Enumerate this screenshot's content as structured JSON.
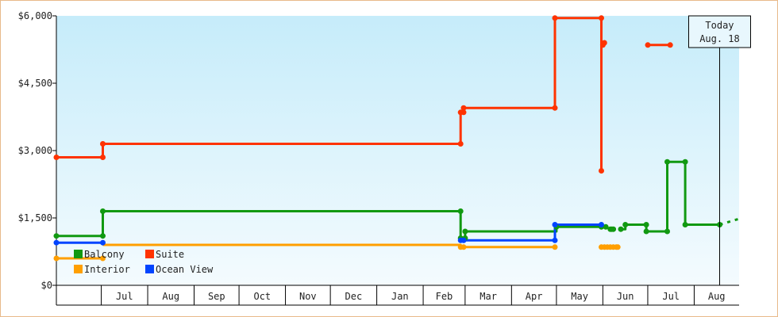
{
  "chart_data": {
    "type": "line",
    "title": "",
    "xlabel": "",
    "ylabel": "",
    "ylim": [
      0,
      6000
    ],
    "y_ticks": [
      "$0",
      "$1,500",
      "$3,000",
      "$4,500",
      "$6,000"
    ],
    "y_tick_values": [
      0,
      1500,
      3000,
      4500,
      6000
    ],
    "x_range": [
      "2012-06-01",
      "2013-08-31"
    ],
    "x_ticks": [
      {
        "label": "Jul",
        "start": "2012-07-01",
        "end": "2012-08-01"
      },
      {
        "label": "Aug",
        "start": "2012-08-01",
        "end": "2012-09-01"
      },
      {
        "label": "Sep",
        "start": "2012-09-01",
        "end": "2012-10-01"
      },
      {
        "label": "Oct",
        "start": "2012-10-01",
        "end": "2012-11-01"
      },
      {
        "label": "Nov",
        "start": "2012-11-01",
        "end": "2012-12-01"
      },
      {
        "label": "Dec",
        "start": "2012-12-01",
        "end": "2013-01-01"
      },
      {
        "label": "Jan",
        "start": "2013-01-01",
        "end": "2013-02-01"
      },
      {
        "label": "Feb",
        "start": "2013-02-01",
        "end": "2013-03-01"
      },
      {
        "label": "Mar",
        "start": "2013-03-01",
        "end": "2013-04-01"
      },
      {
        "label": "Apr",
        "start": "2013-04-01",
        "end": "2013-05-01"
      },
      {
        "label": "May",
        "start": "2013-05-01",
        "end": "2013-06-01"
      },
      {
        "label": "Jun",
        "start": "2013-06-01",
        "end": "2013-07-01"
      },
      {
        "label": "Jul",
        "start": "2013-07-01",
        "end": "2013-08-01"
      },
      {
        "label": "Aug",
        "start": "2013-08-01",
        "end": "2013-08-31"
      }
    ],
    "today": {
      "line1": "Today",
      "line2": "Aug. 18",
      "date": "2013-08-18"
    },
    "grid": false,
    "legend_placement": "bottom-left",
    "series": [
      {
        "name": "Balcony",
        "color": "#119911",
        "segments": [
          [
            [
              "2012-06-01",
              1100
            ],
            [
              "2012-07-02",
              1100
            ],
            [
              "2012-07-02",
              1650
            ],
            [
              "2013-02-26",
              1650
            ],
            [
              "2013-02-26",
              1050
            ],
            [
              "2013-03-01",
              1050
            ],
            [
              "2013-03-01",
              1200
            ],
            [
              "2013-05-01",
              1200
            ],
            [
              "2013-05-01",
              1300
            ],
            [
              "2013-05-31",
              1300
            ]
          ],
          [
            [
              "2013-06-06",
              1250
            ],
            [
              "2013-06-08",
              1250
            ]
          ],
          [
            [
              "2013-06-13",
              1250
            ],
            [
              "2013-06-16",
              1250
            ],
            [
              "2013-06-16",
              1350
            ],
            [
              "2013-06-30",
              1350
            ],
            [
              "2013-06-30",
              1200
            ],
            [
              "2013-07-14",
              1200
            ],
            [
              "2013-07-14",
              2750
            ],
            [
              "2013-07-26",
              2750
            ],
            [
              "2013-07-26",
              1350
            ],
            [
              "2013-08-18",
              1350
            ]
          ]
        ],
        "projection": [
          [
            "2013-08-18",
            1350
          ],
          [
            "2013-08-31",
            1480
          ]
        ],
        "points": [
          [
            "2012-06-01",
            1100
          ],
          [
            "2012-07-02",
            1100
          ],
          [
            "2012-07-02",
            1650
          ],
          [
            "2013-02-26",
            1650
          ],
          [
            "2013-02-26",
            1050
          ],
          [
            "2013-03-01",
            1050
          ],
          [
            "2013-03-01",
            1200
          ],
          [
            "2013-05-01",
            1300
          ],
          [
            "2013-05-31",
            1300
          ],
          [
            "2013-06-03",
            1300
          ],
          [
            "2013-06-06",
            1250
          ],
          [
            "2013-06-07",
            1250
          ],
          [
            "2013-06-08",
            1250
          ],
          [
            "2013-06-13",
            1250
          ],
          [
            "2013-06-16",
            1350
          ],
          [
            "2013-06-30",
            1350
          ],
          [
            "2013-06-30",
            1200
          ],
          [
            "2013-07-14",
            1200
          ],
          [
            "2013-07-14",
            2750
          ],
          [
            "2013-07-26",
            2750
          ],
          [
            "2013-07-26",
            1350
          ],
          [
            "2013-08-18",
            1350
          ]
        ]
      },
      {
        "name": "Suite",
        "color": "#ff3300",
        "segments": [
          [
            [
              "2012-06-01",
              2850
            ],
            [
              "2012-07-02",
              2850
            ],
            [
              "2012-07-02",
              3150
            ],
            [
              "2013-02-26",
              3150
            ],
            [
              "2013-02-26",
              3850
            ],
            [
              "2013-02-28",
              3850
            ],
            [
              "2013-02-28",
              3950
            ],
            [
              "2013-04-30",
              3950
            ],
            [
              "2013-04-30",
              5950
            ],
            [
              "2013-05-31",
              5950
            ],
            [
              "2013-05-31",
              2550
            ],
            [
              "2013-05-31",
              5400
            ],
            [
              "2013-06-02",
              5400
            ]
          ],
          [
            [
              "2013-07-01",
              5350
            ],
            [
              "2013-07-16",
              5350
            ]
          ]
        ],
        "points": [
          [
            "2012-06-01",
            2850
          ],
          [
            "2012-07-02",
            2850
          ],
          [
            "2012-07-02",
            3150
          ],
          [
            "2013-02-26",
            3150
          ],
          [
            "2013-02-26",
            3850
          ],
          [
            "2013-02-28",
            3850
          ],
          [
            "2013-02-28",
            3950
          ],
          [
            "2013-04-30",
            3950
          ],
          [
            "2013-04-30",
            5950
          ],
          [
            "2013-05-31",
            5950
          ],
          [
            "2013-05-31",
            2550
          ],
          [
            "2013-06-01",
            5350
          ],
          [
            "2013-06-02",
            5400
          ],
          [
            "2013-07-01",
            5350
          ],
          [
            "2013-07-16",
            5350
          ]
        ]
      },
      {
        "name": "Interior",
        "color": "#ff9f00",
        "segments": [
          [
            [
              "2012-06-01",
              600
            ],
            [
              "2012-07-02",
              600
            ]
          ],
          [
            [
              "2012-07-02",
              900
            ],
            [
              "2013-02-26",
              900
            ],
            [
              "2013-02-26",
              850
            ],
            [
              "2013-04-30",
              850
            ]
          ]
        ],
        "points": [
          [
            "2012-06-01",
            600
          ],
          [
            "2012-07-02",
            600
          ],
          [
            "2013-02-26",
            850
          ],
          [
            "2013-02-28",
            850
          ],
          [
            "2013-04-30",
            850
          ],
          [
            "2013-05-31",
            850
          ],
          [
            "2013-06-02",
            850
          ],
          [
            "2013-06-04",
            850
          ],
          [
            "2013-06-06",
            850
          ],
          [
            "2013-06-08",
            850
          ],
          [
            "2013-06-10",
            850
          ],
          [
            "2013-06-11",
            850
          ]
        ]
      },
      {
        "name": "Ocean View",
        "color": "#0044ff",
        "segments": [
          [
            [
              "2012-06-01",
              950
            ],
            [
              "2012-07-02",
              950
            ]
          ],
          [
            [
              "2013-02-26",
              1000
            ],
            [
              "2013-04-30",
              1000
            ],
            [
              "2013-04-30",
              1350
            ],
            [
              "2013-05-31",
              1350
            ]
          ]
        ],
        "points": [
          [
            "2012-06-01",
            950
          ],
          [
            "2012-07-02",
            950
          ],
          [
            "2013-02-26",
            1000
          ],
          [
            "2013-02-28",
            1000
          ],
          [
            "2013-04-30",
            1000
          ],
          [
            "2013-04-30",
            1350
          ],
          [
            "2013-05-31",
            1350
          ]
        ]
      }
    ]
  }
}
